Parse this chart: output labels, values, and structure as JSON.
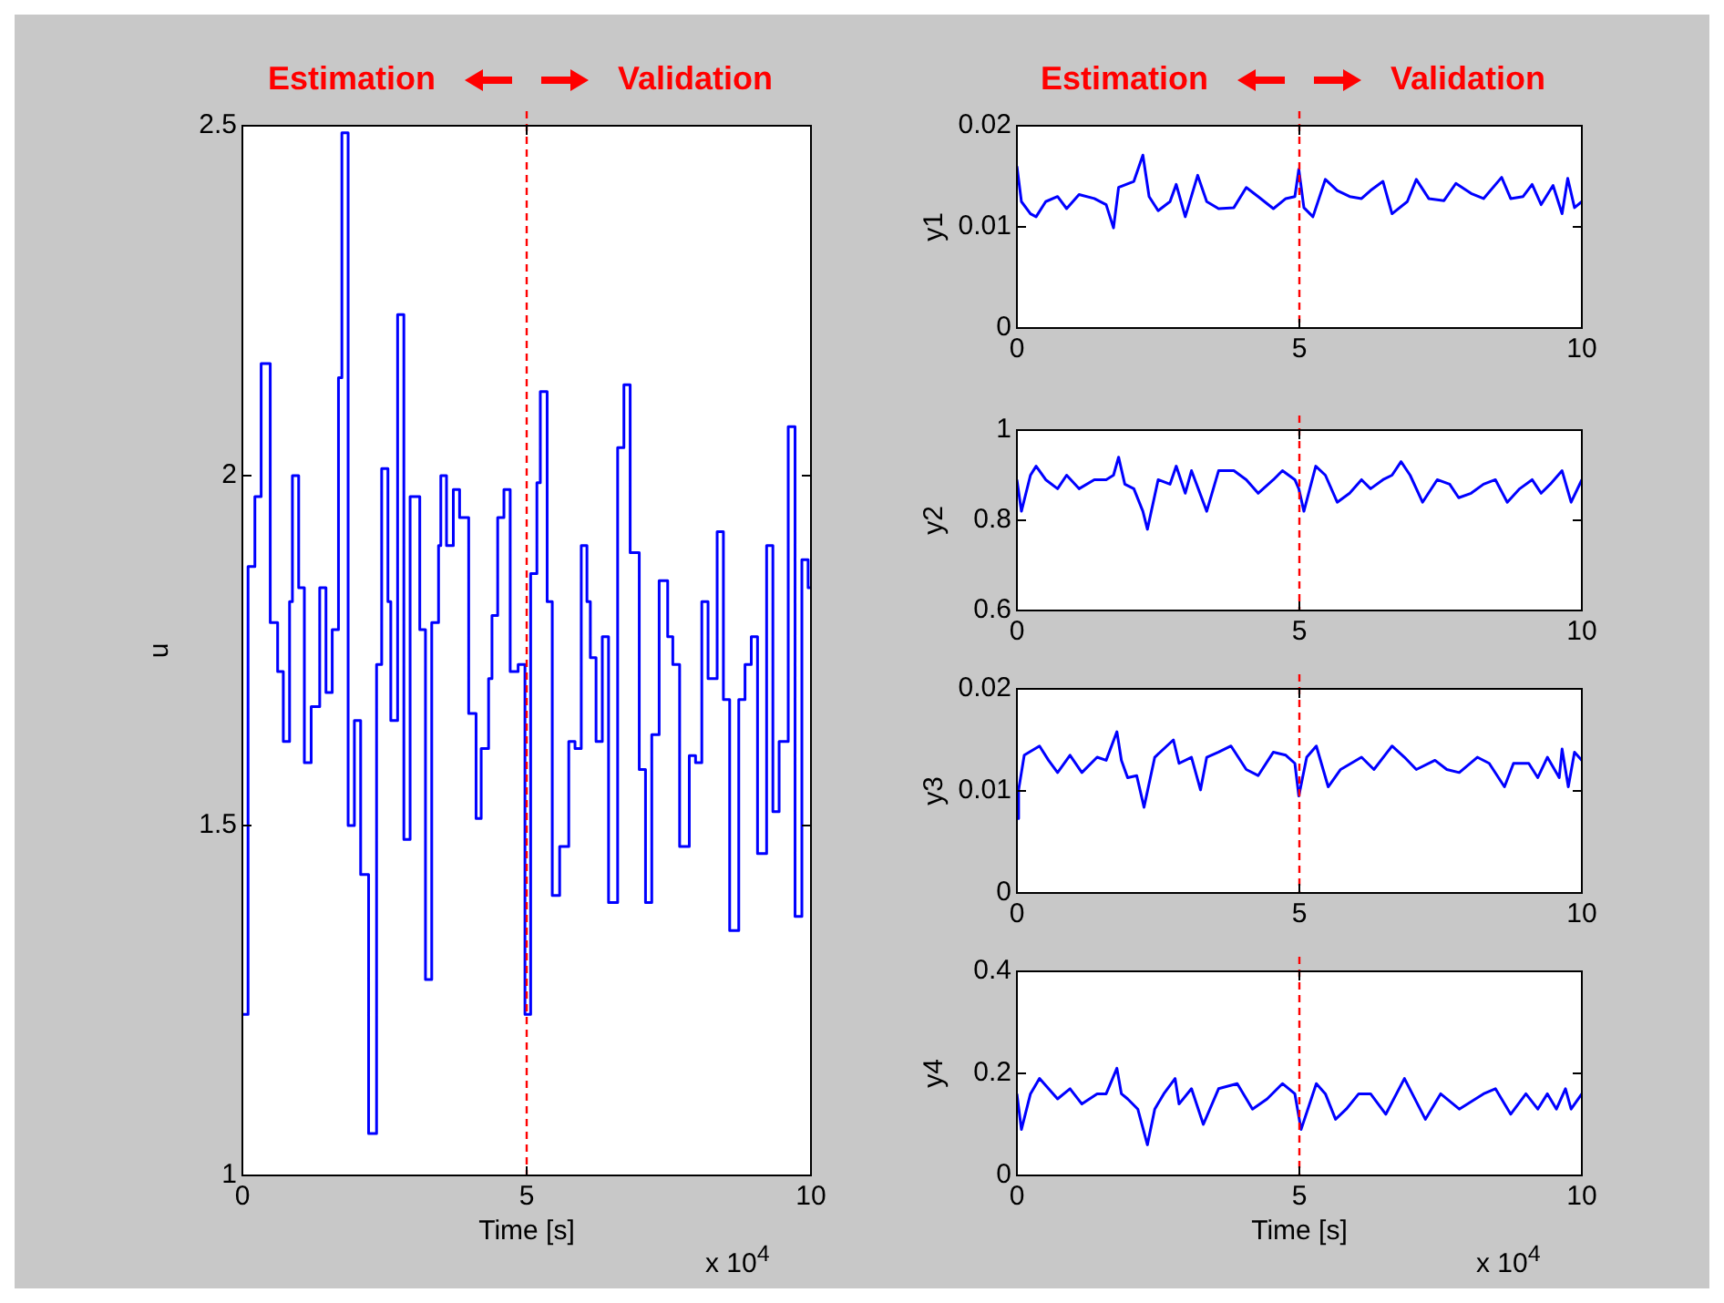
{
  "chart_data": [
    {
      "type": "step",
      "xlabel": "Time [s]",
      "ylabel": "u",
      "annotations": [
        "Estimation",
        "Validation",
        "x 10$^{4}$"
      ],
      "xlim": [
        0,
        10
      ],
      "xticks": [
        0,
        5,
        10
      ],
      "ylim": [
        1,
        2.5
      ],
      "yticks": [
        1,
        1.5,
        2,
        2.5
      ],
      "ref_lines": [
        {
          "axis": "x",
          "value": 5,
          "color": "#ff0000",
          "line_style": "dashed"
        }
      ],
      "series": [
        {
          "color": "#0000ff",
          "x": [
            0,
            0.1,
            0.22,
            0.33,
            0.49,
            0.62,
            0.72,
            0.83,
            0.88,
            0.99,
            1.09,
            1.21,
            1.36,
            1.47,
            1.58,
            1.69,
            1.75,
            1.86,
            1.97,
            2.08,
            2.22,
            2.36,
            2.45,
            2.56,
            2.61,
            2.73,
            2.84,
            2.95,
            3.12,
            3.22,
            3.33,
            3.45,
            3.49,
            3.59,
            3.71,
            3.82,
            3.98,
            4.11,
            4.2,
            4.33,
            4.39,
            4.49,
            4.6,
            4.71,
            4.85,
            4.97,
            5.07,
            5.18,
            5.24,
            5.36,
            5.45,
            5.58,
            5.74,
            5.85,
            5.96,
            6.06,
            6.12,
            6.22,
            6.33,
            6.44,
            6.6,
            6.71,
            6.82,
            6.98,
            7.09,
            7.2,
            7.33,
            7.48,
            7.57,
            7.69,
            7.86,
            7.97,
            8.08,
            8.19,
            8.35,
            8.46,
            8.57,
            8.73,
            8.84,
            8.95,
            9.06,
            9.22,
            9.33,
            9.44,
            9.6,
            9.72,
            9.84,
            9.95,
            10
          ],
          "values": [
            1.23,
            1.87,
            1.97,
            2.16,
            1.79,
            1.72,
            1.62,
            1.82,
            2.0,
            1.84,
            1.59,
            1.67,
            1.84,
            1.69,
            1.78,
            2.14,
            2.49,
            1.5,
            1.65,
            1.43,
            1.06,
            1.73,
            2.01,
            1.82,
            1.65,
            2.23,
            1.48,
            1.97,
            1.78,
            1.28,
            1.79,
            1.9,
            2.0,
            1.9,
            1.98,
            1.94,
            1.66,
            1.51,
            1.61,
            1.71,
            1.8,
            1.94,
            1.98,
            1.72,
            1.73,
            1.23,
            1.86,
            1.99,
            2.12,
            1.82,
            1.4,
            1.47,
            1.62,
            1.61,
            1.9,
            1.82,
            1.74,
            1.62,
            1.77,
            1.39,
            2.04,
            2.13,
            1.89,
            1.58,
            1.39,
            1.63,
            1.85,
            1.77,
            1.73,
            1.47,
            1.6,
            1.59,
            1.82,
            1.71,
            1.92,
            1.68,
            1.35,
            1.68,
            1.73,
            1.77,
            1.46,
            1.9,
            1.52,
            1.62,
            2.07,
            1.37,
            1.88,
            1.84,
            1.84
          ]
        }
      ]
    },
    {
      "type": "line",
      "ylabel": "y1",
      "annotations": [
        "Estimation",
        "Validation"
      ],
      "xlim": [
        0,
        10
      ],
      "xticks": [
        0,
        5,
        10
      ],
      "ylim": [
        0,
        0.02
      ],
      "yticks": [
        0,
        0.01,
        0.02
      ],
      "ref_lines": [
        {
          "axis": "x",
          "value": 5,
          "color": "#ff0000",
          "line_style": "dashed"
        }
      ],
      "series": [
        {
          "color": "#0000ff",
          "x": [
            0,
            0.08,
            0.24,
            0.34,
            0.51,
            0.72,
            0.88,
            1.1,
            1.37,
            1.58,
            1.71,
            1.8,
            2.07,
            2.23,
            2.34,
            2.5,
            2.71,
            2.82,
            2.98,
            3.2,
            3.36,
            3.57,
            3.84,
            4.06,
            4.27,
            4.54,
            4.76,
            4.92,
            4.99,
            5.08,
            5.24,
            5.46,
            5.67,
            5.89,
            6.1,
            6.26,
            6.48,
            6.64,
            6.91,
            7.07,
            7.29,
            7.56,
            7.77,
            8.04,
            8.26,
            8.58,
            8.74,
            8.96,
            9.12,
            9.28,
            9.49,
            9.65,
            9.75,
            9.87,
            10
          ],
          "values": [
            0.016,
            0.0125,
            0.0113,
            0.011,
            0.0125,
            0.013,
            0.0118,
            0.0132,
            0.0128,
            0.0122,
            0.0099,
            0.0139,
            0.0145,
            0.0171,
            0.013,
            0.0116,
            0.0125,
            0.0142,
            0.011,
            0.0151,
            0.0125,
            0.0118,
            0.0119,
            0.0139,
            0.013,
            0.0118,
            0.0128,
            0.013,
            0.0157,
            0.0119,
            0.011,
            0.0147,
            0.0136,
            0.013,
            0.0128,
            0.0136,
            0.0145,
            0.0113,
            0.0125,
            0.0147,
            0.0128,
            0.0126,
            0.0143,
            0.0133,
            0.0128,
            0.0149,
            0.0128,
            0.013,
            0.0142,
            0.0122,
            0.0141,
            0.0113,
            0.0148,
            0.0119,
            0.0125
          ]
        }
      ]
    },
    {
      "type": "line",
      "ylabel": "y2",
      "xlim": [
        0,
        10
      ],
      "xticks": [
        0,
        5,
        10
      ],
      "ylim": [
        0.6,
        1
      ],
      "yticks": [
        0.6,
        0.8,
        1
      ],
      "ref_lines": [
        {
          "axis": "x",
          "value": 5,
          "color": "#ff0000",
          "line_style": "dashed"
        }
      ],
      "series": [
        {
          "color": "#0000ff",
          "x": [
            0,
            0.08,
            0.24,
            0.34,
            0.51,
            0.72,
            0.88,
            1.1,
            1.37,
            1.58,
            1.71,
            1.8,
            1.91,
            2.07,
            2.23,
            2.31,
            2.5,
            2.71,
            2.82,
            2.98,
            3.09,
            3.36,
            3.57,
            3.84,
            4.06,
            4.27,
            4.54,
            4.7,
            4.92,
            4.99,
            5.08,
            5.29,
            5.46,
            5.67,
            5.89,
            6.1,
            6.26,
            6.48,
            6.64,
            6.8,
            6.96,
            7.18,
            7.44,
            7.66,
            7.82,
            8.04,
            8.26,
            8.47,
            8.68,
            8.9,
            9.12,
            9.28,
            9.44,
            9.65,
            9.81,
            10
          ],
          "values": [
            0.89,
            0.82,
            0.9,
            0.92,
            0.89,
            0.87,
            0.9,
            0.87,
            0.89,
            0.89,
            0.9,
            0.94,
            0.88,
            0.87,
            0.82,
            0.78,
            0.89,
            0.88,
            0.92,
            0.86,
            0.91,
            0.82,
            0.91,
            0.91,
            0.89,
            0.86,
            0.89,
            0.91,
            0.89,
            0.87,
            0.82,
            0.92,
            0.9,
            0.84,
            0.86,
            0.89,
            0.87,
            0.89,
            0.9,
            0.93,
            0.9,
            0.84,
            0.89,
            0.88,
            0.85,
            0.86,
            0.88,
            0.89,
            0.84,
            0.87,
            0.89,
            0.86,
            0.88,
            0.91,
            0.84,
            0.89
          ]
        }
      ]
    },
    {
      "type": "line",
      "ylabel": "y3",
      "xlim": [
        0,
        10
      ],
      "xticks": [
        0,
        5,
        10
      ],
      "ylim": [
        0,
        0.02
      ],
      "yticks": [
        0,
        0.01,
        0.02
      ],
      "ref_lines": [
        {
          "axis": "x",
          "value": 5,
          "color": "#ff0000",
          "line_style": "dashed"
        }
      ],
      "series": [
        {
          "color": "#0000ff",
          "x": [
            0,
            0.03,
            0.13,
            0.4,
            0.56,
            0.72,
            0.94,
            1.15,
            1.42,
            1.58,
            1.77,
            1.85,
            1.96,
            2.12,
            2.25,
            2.44,
            2.77,
            2.87,
            3.09,
            3.25,
            3.36,
            3.57,
            3.79,
            4.06,
            4.27,
            4.54,
            4.76,
            4.92,
            4.99,
            5.13,
            5.3,
            5.51,
            5.73,
            6.1,
            6.32,
            6.64,
            6.86,
            7.07,
            7.4,
            7.61,
            7.83,
            8.15,
            8.36,
            8.63,
            8.79,
            9.06,
            9.22,
            9.39,
            9.6,
            9.65,
            9.76,
            9.87,
            10
          ],
          "values": [
            0.0073,
            0.0101,
            0.0135,
            0.0144,
            0.013,
            0.0118,
            0.0135,
            0.0118,
            0.0133,
            0.013,
            0.0158,
            0.013,
            0.0113,
            0.0115,
            0.0084,
            0.0133,
            0.015,
            0.0127,
            0.0133,
            0.0101,
            0.0133,
            0.0138,
            0.0144,
            0.0121,
            0.0115,
            0.0138,
            0.0135,
            0.0127,
            0.0095,
            0.0133,
            0.0144,
            0.0104,
            0.0121,
            0.0133,
            0.0121,
            0.0144,
            0.0133,
            0.0121,
            0.013,
            0.0121,
            0.0118,
            0.0133,
            0.0127,
            0.0104,
            0.0127,
            0.0127,
            0.0113,
            0.0133,
            0.0113,
            0.0141,
            0.0104,
            0.0138,
            0.013
          ]
        }
      ]
    },
    {
      "type": "line",
      "xlabel": "Time [s]",
      "ylabel": "y4",
      "annotations": [
        "x 10$^{4}$"
      ],
      "xlim": [
        0,
        10
      ],
      "xticks": [
        0,
        5,
        10
      ],
      "ylim": [
        0,
        0.4
      ],
      "yticks": [
        0,
        0.2,
        0.4
      ],
      "ref_lines": [
        {
          "axis": "x",
          "value": 5,
          "color": "#ff0000",
          "line_style": "dashed"
        }
      ],
      "series": [
        {
          "color": "#0000ff",
          "x": [
            0,
            0.08,
            0.24,
            0.4,
            0.56,
            0.72,
            0.94,
            1.15,
            1.42,
            1.58,
            1.77,
            1.85,
            1.96,
            2.14,
            2.31,
            2.44,
            2.6,
            2.8,
            2.87,
            3.09,
            3.3,
            3.57,
            3.9,
            4.17,
            4.43,
            4.7,
            4.92,
            5.03,
            5.3,
            5.46,
            5.64,
            5.83,
            6.05,
            6.26,
            6.53,
            6.86,
            7.23,
            7.5,
            7.83,
            8.26,
            8.47,
            8.74,
            9.01,
            9.22,
            9.39,
            9.55,
            9.71,
            9.81,
            10
          ],
          "values": [
            0.16,
            0.09,
            0.16,
            0.19,
            0.17,
            0.15,
            0.17,
            0.14,
            0.16,
            0.16,
            0.21,
            0.16,
            0.15,
            0.13,
            0.06,
            0.13,
            0.16,
            0.19,
            0.14,
            0.17,
            0.1,
            0.17,
            0.18,
            0.13,
            0.15,
            0.18,
            0.16,
            0.09,
            0.18,
            0.16,
            0.11,
            0.13,
            0.16,
            0.16,
            0.12,
            0.19,
            0.11,
            0.16,
            0.13,
            0.16,
            0.17,
            0.12,
            0.16,
            0.13,
            0.16,
            0.13,
            0.17,
            0.13,
            0.16
          ]
        }
      ]
    }
  ]
}
